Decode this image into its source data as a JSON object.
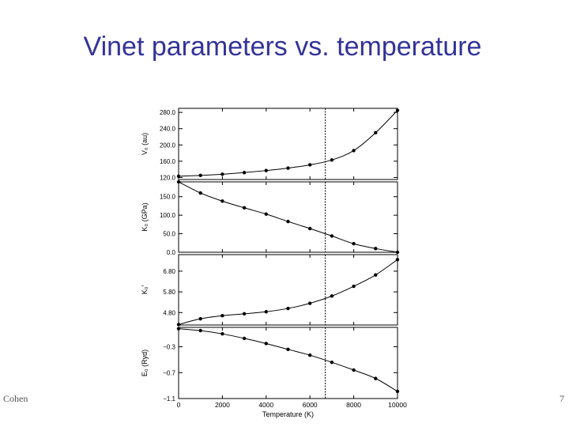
{
  "slide": {
    "title": "Vinet parameters vs. temperature",
    "footer_left": "Cohen",
    "footer_right": "7"
  },
  "chart_data": {
    "type": "line",
    "shared_x": {
      "label": "Temperature (K)",
      "ticks": [
        0,
        2000,
        4000,
        6000,
        8000,
        10000
      ],
      "tick_labels": [
        "0",
        "2000",
        "4000",
        "6000",
        "8000",
        "10000"
      ],
      "range": [
        0,
        10000
      ]
    },
    "vertical_line_x": 6700,
    "points_x": [
      0,
      1000,
      2000,
      3000,
      4000,
      5000,
      6000,
      7000,
      8000,
      9000,
      10000
    ],
    "panels": [
      {
        "ylabel": "V₀ (au)",
        "ylim": [
          115,
          290
        ],
        "ticks": [
          120,
          160,
          200,
          240,
          280
        ],
        "tick_labels": [
          "120.0",
          "160.0",
          "200.0",
          "240.0",
          "280.0"
        ],
        "values": [
          123,
          125,
          128,
          132,
          137,
          143,
          151,
          163,
          186,
          230,
          285
        ]
      },
      {
        "ylabel": "K₀ (GPa)",
        "ylim": [
          0,
          190
        ],
        "ticks": [
          0,
          50,
          100,
          150
        ],
        "tick_labels": [
          "0.0",
          "50.0",
          "100.0",
          "150.0"
        ],
        "values": [
          190,
          160,
          138,
          120,
          103,
          83,
          64,
          44,
          23,
          10,
          0
        ]
      },
      {
        "ylabel": "K₀′",
        "ylim": [
          4.2,
          7.6
        ],
        "ticks": [
          4.8,
          5.8,
          6.8
        ],
        "tick_labels": [
          "4.80",
          "5.80",
          "6.80"
        ],
        "values": [
          4.22,
          4.5,
          4.65,
          4.74,
          4.84,
          5.0,
          5.25,
          5.6,
          6.07,
          6.62,
          7.36
        ]
      },
      {
        "ylabel": "E₀ (Ryd)",
        "ylim": [
          -1.1,
          0.0
        ],
        "ticks": [
          -1.1,
          -0.7,
          -0.3
        ],
        "tick_labels": [
          "−1.1",
          "−0.7",
          "−0.3"
        ],
        "values": [
          -0.02,
          -0.05,
          -0.1,
          -0.17,
          -0.25,
          -0.34,
          -0.43,
          -0.54,
          -0.66,
          -0.79,
          -0.99
        ]
      }
    ]
  }
}
